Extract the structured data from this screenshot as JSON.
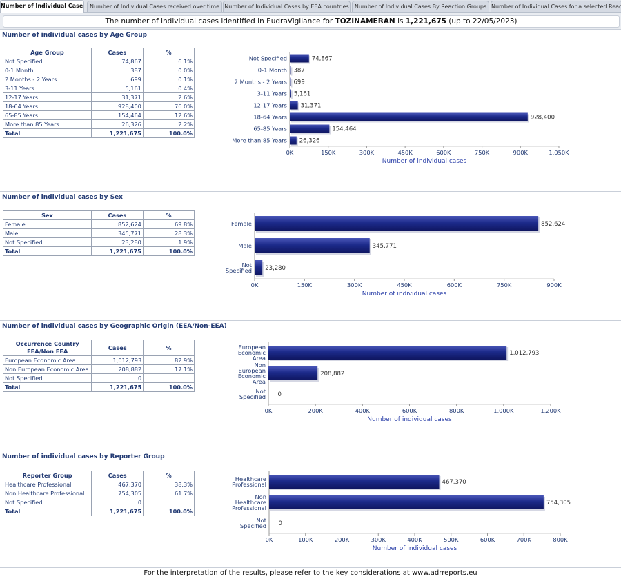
{
  "tabs": [
    {
      "label": "Number of Individual Cases",
      "active": true
    },
    {
      "label": "Number of Individual Cases received over time",
      "active": false
    },
    {
      "label": "Number of Individual Cases by EEA countries",
      "active": false
    },
    {
      "label": "Number of Individual Cases By Reaction Groups",
      "active": false
    },
    {
      "label": "Number of Individual Cases for a selected Reactio",
      "active": false
    }
  ],
  "headline": {
    "prefix": "The number of individual cases identified in EudraVigilance for ",
    "product": "TOZINAMERAN",
    "mid": " is ",
    "total": "1,221,675",
    "suffix": " (up to 22/05/2023)"
  },
  "footer": "For the interpretation of the results, please refer to the key considerations at www.adrreports.eu",
  "chart_data": [
    {
      "type": "bar",
      "title": "Number of individual cases by Age Group",
      "table_headers": [
        "Age Group",
        "Cases",
        "%"
      ],
      "rows": [
        {
          "label": "Not Specified",
          "cases": "74,867",
          "pct": "6.1%"
        },
        {
          "label": "0-1 Month",
          "cases": "387",
          "pct": "0.0%"
        },
        {
          "label": "2 Months - 2 Years",
          "cases": "699",
          "pct": "0.1%"
        },
        {
          "label": "3-11 Years",
          "cases": "5,161",
          "pct": "0.4%"
        },
        {
          "label": "12-17 Years",
          "cases": "31,371",
          "pct": "2.6%"
        },
        {
          "label": "18-64 Years",
          "cases": "928,400",
          "pct": "76.0%"
        },
        {
          "label": "65-85 Years",
          "cases": "154,464",
          "pct": "12.6%"
        },
        {
          "label": "More than 85 Years",
          "cases": "26,326",
          "pct": "2.2%"
        }
      ],
      "total": {
        "label": "Total",
        "cases": "1,221,675",
        "pct": "100.0%"
      },
      "categories": [
        "Not Specified",
        "0-1 Month",
        "2 Months - 2 Years",
        "3-11 Years",
        "12-17 Years",
        "18-64 Years",
        "65-85 Years",
        "More than 85 Years"
      ],
      "values": [
        74867,
        387,
        699,
        5161,
        31371,
        928400,
        154464,
        26326
      ],
      "value_labels": [
        "74,867",
        "387",
        "699",
        "5,161",
        "31,371",
        "928,400",
        "154,464",
        "26,326"
      ],
      "xlim": [
        0,
        1050000
      ],
      "xticks": [
        0,
        150000,
        300000,
        450000,
        600000,
        750000,
        900000,
        1050000
      ],
      "xtick_labels": [
        "0K",
        "150K",
        "300K",
        "450K",
        "600K",
        "750K",
        "900K",
        "1,050K"
      ],
      "xlabel": "Number of individual cases",
      "orientation": "horizontal"
    },
    {
      "type": "bar",
      "title": "Number of individual cases by Sex",
      "table_headers": [
        "Sex",
        "Cases",
        "%"
      ],
      "rows": [
        {
          "label": "Female",
          "cases": "852,624",
          "pct": "69.8%"
        },
        {
          "label": "Male",
          "cases": "345,771",
          "pct": "28.3%"
        },
        {
          "label": "Not Specified",
          "cases": "23,280",
          "pct": "1.9%"
        }
      ],
      "total": {
        "label": "Total",
        "cases": "1,221,675",
        "pct": "100.0%"
      },
      "categories": [
        "Female",
        "Male",
        "Not Specified"
      ],
      "values": [
        852624,
        345771,
        23280
      ],
      "value_labels": [
        "852,624",
        "345,771",
        "23,280"
      ],
      "xlim": [
        0,
        900000
      ],
      "xticks": [
        0,
        150000,
        300000,
        450000,
        600000,
        750000,
        900000
      ],
      "xtick_labels": [
        "0K",
        "150K",
        "300K",
        "450K",
        "600K",
        "750K",
        "900K"
      ],
      "xlabel": "Number of individual cases",
      "orientation": "horizontal"
    },
    {
      "type": "bar",
      "title": "Number of individual cases by Geographic Origin (EEA/Non-EEA)",
      "table_headers": [
        "Occurrence Country EEA/Non EEA",
        "Cases",
        "%"
      ],
      "rows": [
        {
          "label": "European Economic Area",
          "cases": "1,012,793",
          "pct": "82.9%"
        },
        {
          "label": "Non European Economic Area",
          "cases": "208,882",
          "pct": "17.1%"
        },
        {
          "label": "Not Specified",
          "cases": "0",
          "pct": ""
        }
      ],
      "total": {
        "label": "Total",
        "cases": "1,221,675",
        "pct": "100.0%"
      },
      "categories": [
        "European Economic Area",
        "Non European Economic Area",
        "Not Specified"
      ],
      "values": [
        1012793,
        208882,
        0
      ],
      "value_labels": [
        "1,012,793",
        "208,882",
        "0"
      ],
      "xlim": [
        0,
        1200000
      ],
      "xticks": [
        0,
        200000,
        400000,
        600000,
        800000,
        1000000,
        1200000
      ],
      "xtick_labels": [
        "0K",
        "200K",
        "400K",
        "600K",
        "800K",
        "1,000K",
        "1,200K"
      ],
      "xlabel": "Number of individual cases",
      "orientation": "horizontal"
    },
    {
      "type": "bar",
      "title": "Number of individual cases by Reporter Group",
      "table_headers": [
        "Reporter Group",
        "Cases",
        "%"
      ],
      "rows": [
        {
          "label": "Healthcare Professional",
          "cases": "467,370",
          "pct": "38.3%"
        },
        {
          "label": "Non Healthcare Professional",
          "cases": "754,305",
          "pct": "61.7%"
        },
        {
          "label": "Not Specified",
          "cases": "0",
          "pct": ""
        }
      ],
      "total": {
        "label": "Total",
        "cases": "1,221,675",
        "pct": "100.0%"
      },
      "categories": [
        "Healthcare Professional",
        "Non Healthcare Professional",
        "Not Specified"
      ],
      "values": [
        467370,
        754305,
        0
      ],
      "value_labels": [
        "467,370",
        "754,305",
        "0"
      ],
      "xlim": [
        0,
        800000
      ],
      "xticks": [
        0,
        100000,
        200000,
        300000,
        400000,
        500000,
        600000,
        700000,
        800000
      ],
      "xtick_labels": [
        "0K",
        "100K",
        "200K",
        "300K",
        "400K",
        "500K",
        "600K",
        "700K",
        "800K"
      ],
      "xlabel": "Number of individual cases",
      "orientation": "horizontal"
    }
  ],
  "colors": {
    "bar": "#1c2a8a",
    "bar_dark": "#0f1660",
    "axis": "#223a73",
    "title": "#223a73"
  }
}
